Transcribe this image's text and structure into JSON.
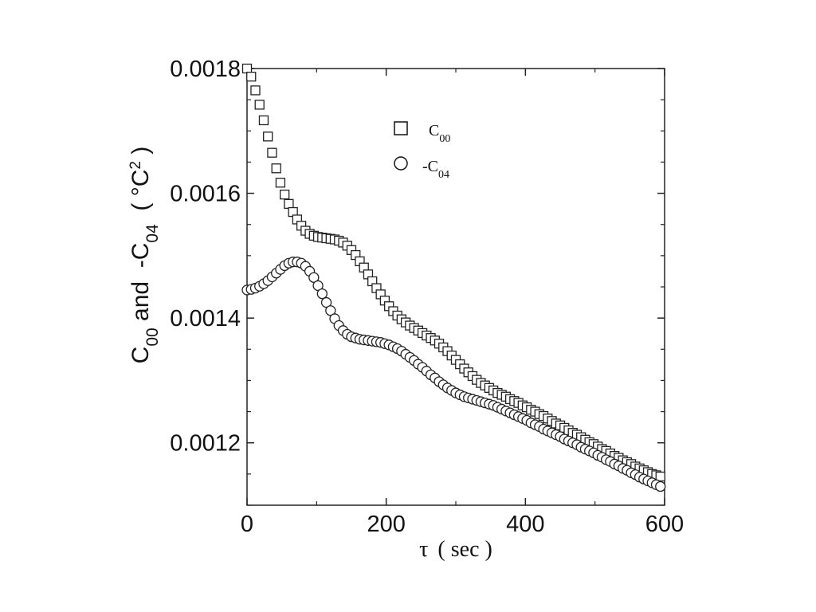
{
  "chart_data": {
    "type": "scatter",
    "xlabel": {
      "symbol": "τ",
      "unit": "( sec )"
    },
    "ylabel": {
      "a_main": "C",
      "a_sub": "00",
      "mid": " and  -C",
      "b_sub": "04",
      "unit_open": "  ( ",
      "unit_main": "°C",
      "unit_sup": "2",
      "unit_close": " )"
    },
    "xlim": [
      0,
      600
    ],
    "ylim": [
      0.0011,
      0.0018
    ],
    "x_ticks": [
      "0",
      "200",
      "400",
      "600"
    ],
    "y_ticks": [
      "0.0012",
      "0.0014",
      "0.0016",
      "0.0018"
    ],
    "grid": false,
    "legend_position": "top-center",
    "series": [
      {
        "name": "C00",
        "label_main": "C",
        "label_sub": "00",
        "marker": "square",
        "x": [
          0,
          6,
          12,
          18,
          24,
          30,
          36,
          42,
          48,
          54,
          60,
          66,
          72,
          78,
          84,
          90,
          96,
          102,
          108,
          114,
          120,
          126,
          132,
          138,
          144,
          150,
          156,
          162,
          168,
          174,
          180,
          186,
          192,
          198,
          204,
          210,
          216,
          222,
          228,
          234,
          240,
          246,
          252,
          258,
          264,
          270,
          276,
          282,
          288,
          294,
          300,
          306,
          312,
          318,
          324,
          330,
          336,
          342,
          348,
          354,
          360,
          366,
          372,
          378,
          384,
          390,
          396,
          402,
          408,
          414,
          420,
          426,
          432,
          438,
          444,
          450,
          456,
          462,
          468,
          474,
          480,
          486,
          492,
          498,
          504,
          510,
          516,
          522,
          528,
          534,
          540,
          546,
          552,
          558,
          564,
          570,
          576,
          582,
          588,
          594
        ],
        "y": [
          0.0018,
          0.001787,
          0.001765,
          0.001742,
          0.001717,
          0.001691,
          0.001665,
          0.00164,
          0.001617,
          0.001598,
          0.001583,
          0.00157,
          0.001558,
          0.001548,
          0.00154,
          0.001535,
          0.001532,
          0.00153,
          0.001529,
          0.001528,
          0.001527,
          0.001526,
          0.001524,
          0.001521,
          0.001516,
          0.001509,
          0.001501,
          0.001491,
          0.001481,
          0.00147,
          0.001459,
          0.001448,
          0.001438,
          0.001428,
          0.001419,
          0.001411,
          0.001404,
          0.001398,
          0.001393,
          0.001388,
          0.001384,
          0.00138,
          0.001376,
          0.001372,
          0.001368,
          0.001364,
          0.001359,
          0.001353,
          0.001347,
          0.00134,
          0.001333,
          0.001326,
          0.001319,
          0.001313,
          0.001307,
          0.001301,
          0.001296,
          0.001292,
          0.001288,
          0.001284,
          0.00128,
          0.001277,
          0.001274,
          0.00127,
          0.001267,
          0.001264,
          0.00126,
          0.001257,
          0.001253,
          0.00125,
          0.001246,
          0.001243,
          0.001239,
          0.001235,
          0.001231,
          0.001228,
          0.001224,
          0.00122,
          0.001216,
          0.001213,
          0.001209,
          0.001205,
          0.001201,
          0.001198,
          0.001194,
          0.00119,
          0.001187,
          0.001183,
          0.001179,
          0.001176,
          0.001172,
          0.001169,
          0.001166,
          0.001162,
          0.001159,
          0.001156,
          0.001153,
          0.00115,
          0.001148,
          0.001146
        ]
      },
      {
        "name": "-C04",
        "label_prefix": "-",
        "label_main": "C",
        "label_sub": "04",
        "marker": "circle",
        "x": [
          0,
          6,
          12,
          18,
          24,
          30,
          36,
          42,
          48,
          54,
          60,
          66,
          72,
          78,
          84,
          90,
          96,
          102,
          108,
          114,
          120,
          126,
          132,
          138,
          144,
          150,
          156,
          162,
          168,
          174,
          180,
          186,
          192,
          198,
          204,
          210,
          216,
          222,
          228,
          234,
          240,
          246,
          252,
          258,
          264,
          270,
          276,
          282,
          288,
          294,
          300,
          306,
          312,
          318,
          324,
          330,
          336,
          342,
          348,
          354,
          360,
          366,
          372,
          378,
          384,
          390,
          396,
          402,
          408,
          414,
          420,
          426,
          432,
          438,
          444,
          450,
          456,
          462,
          468,
          474,
          480,
          486,
          492,
          498,
          504,
          510,
          516,
          522,
          528,
          534,
          540,
          546,
          552,
          558,
          564,
          570,
          576,
          582,
          588,
          594
        ],
        "y": [
          0.001445,
          0.001446,
          0.001448,
          0.001451,
          0.001455,
          0.00146,
          0.001466,
          0.001472,
          0.001478,
          0.001484,
          0.001488,
          0.00149,
          0.00149,
          0.001488,
          0.001483,
          0.001475,
          0.001465,
          0.001452,
          0.001439,
          0.001425,
          0.001412,
          0.001399,
          0.001388,
          0.00138,
          0.001374,
          0.00137,
          0.001368,
          0.001366,
          0.001365,
          0.001364,
          0.001363,
          0.001362,
          0.001361,
          0.001359,
          0.001357,
          0.001354,
          0.001351,
          0.001347,
          0.001342,
          0.001337,
          0.001332,
          0.001326,
          0.001321,
          0.001315,
          0.001309,
          0.001304,
          0.001298,
          0.001293,
          0.001288,
          0.001284,
          0.00128,
          0.001277,
          0.001274,
          0.001272,
          0.00127,
          0.001268,
          0.001266,
          0.001264,
          0.001262,
          0.00126,
          0.001257,
          0.001254,
          0.001251,
          0.001248,
          0.001245,
          0.001242,
          0.001239,
          0.001236,
          0.001232,
          0.001229,
          0.001226,
          0.001222,
          0.001219,
          0.001216,
          0.001213,
          0.00121,
          0.001206,
          0.001203,
          0.0012,
          0.001197,
          0.001193,
          0.00119,
          0.001187,
          0.001184,
          0.00118,
          0.001177,
          0.001173,
          0.00117,
          0.001166,
          0.001163,
          0.001159,
          0.001156,
          0.001152,
          0.001149,
          0.001145,
          0.001142,
          0.001139,
          0.001136,
          0.001133,
          0.00113
        ]
      }
    ]
  }
}
